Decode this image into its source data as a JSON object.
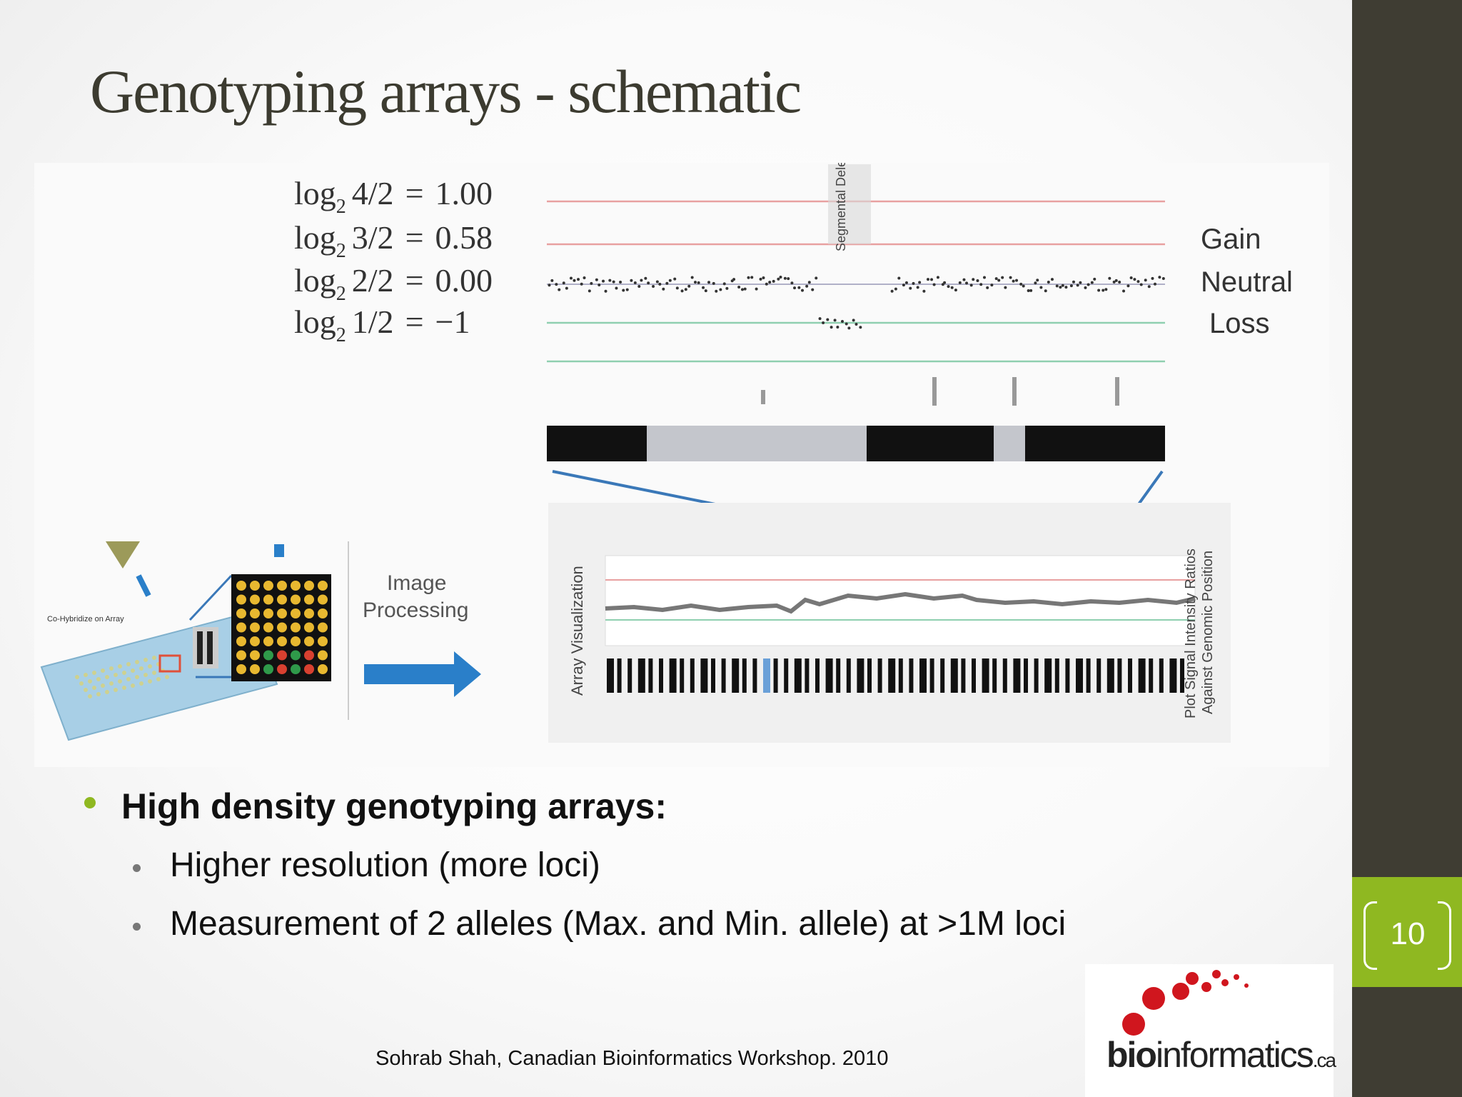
{
  "slide": {
    "title": "Genotyping arrays - schematic",
    "page_number": "10",
    "footer": "Sohrab Shah, Canadian Bioinformatics Workshop. 2010"
  },
  "figure": {
    "equations": [
      {
        "ratio": "4/2",
        "value": "1.00"
      },
      {
        "ratio": "3/2",
        "value": "0.58"
      },
      {
        "ratio": "2/2",
        "value": "0.00"
      },
      {
        "ratio": "1/2",
        "value": "−1"
      }
    ],
    "log_base_prefix": "log",
    "log_base": "2",
    "states": [
      "Gain",
      "Neutral",
      "Loss"
    ],
    "deletion_label": "Segmental Deletion",
    "hybridize_label": "Co-Hybridize on Array",
    "processing_label": [
      "Image",
      "Processing"
    ],
    "array_vis_label": "Array Visualization",
    "plot_label_1": "Plot Signal Intensity Ratios",
    "plot_label_2": "Against Genomic Position",
    "colors": {
      "gain_line": "#e8a0a0",
      "loss_line": "#8fcfb0",
      "accent_green": "#8fb821",
      "arrow_blue": "#2a7fc9"
    }
  },
  "bullets": {
    "main": "High density genotyping arrays:",
    "subs": [
      "Higher resolution (more loci)",
      "Measurement of 2 alleles (Max. and Min. allele) at >1M loci"
    ]
  },
  "logo": {
    "bold": "bio",
    "rest": "informatics",
    "suffix": ".ca"
  }
}
